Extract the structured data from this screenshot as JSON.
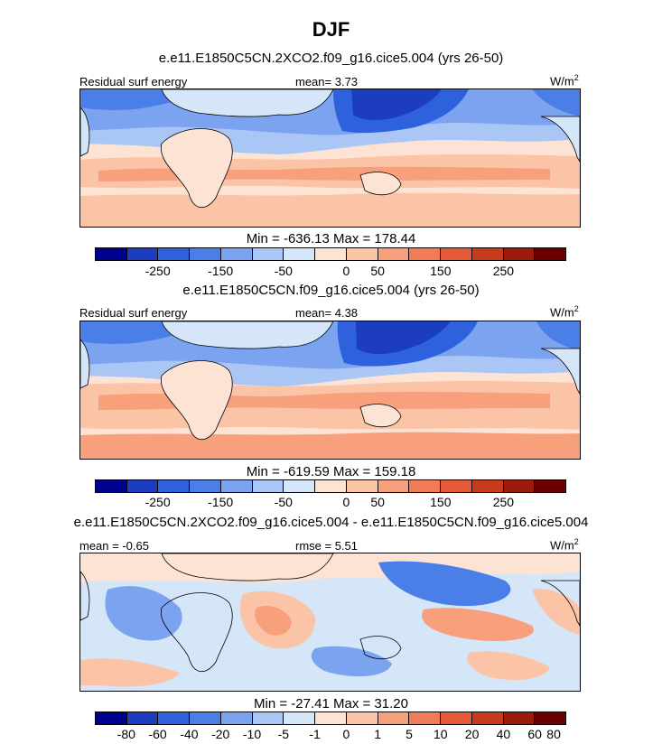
{
  "title": "DJF",
  "panel1": {
    "subtitle": "e.e11.E1850C5CN.2XCO2.f09_g16.cice5.004 (yrs 26-50)",
    "left_label": "Residual surf energy",
    "center_label": "mean=  3.73",
    "units": "W/m",
    "units_exp": "2",
    "minmax": "Min = -636.13 Max = 178.44"
  },
  "panel2": {
    "subtitle": "e.e11.E1850C5CN.f09_g16.cice5.004 (yrs 26-50)",
    "left_label": "Residual surf energy",
    "center_label": "mean=  4.38",
    "units": "W/m",
    "units_exp": "2",
    "minmax": "Min = -619.59 Max = 159.18"
  },
  "panel3": {
    "subtitle": "e.e11.E1850C5CN.2XCO2.f09_g16.cice5.004 - e.e11.E1850C5CN.f09_g16.cice5.004",
    "left_label": "mean =  -0.65",
    "center_label": "rmse =  5.51",
    "units": "W/m",
    "units_exp": "2",
    "minmax": "Min = -27.41 Max =  31.20"
  },
  "colorbar_main": {
    "colors": [
      "#00008f",
      "#1c3dbf",
      "#2e62dd",
      "#4a7fe8",
      "#7ba3f0",
      "#aac6f4",
      "#d4e6f8",
      "#fde3d4",
      "#fbc4a6",
      "#f8a07c",
      "#f27c57",
      "#e45a37",
      "#c73a1c",
      "#9b1a0b",
      "#6b0000"
    ],
    "ticks": [
      "-250",
      "-150",
      "-50",
      "0",
      "50",
      "150",
      "250"
    ]
  },
  "colorbar_diff": {
    "colors": [
      "#00008f",
      "#1c3dbf",
      "#2e62dd",
      "#4a7fe8",
      "#7ba3f0",
      "#aac6f4",
      "#d4e6f8",
      "#fde3d4",
      "#fbc4a6",
      "#f8a07c",
      "#f27c57",
      "#e45a37",
      "#c73a1c",
      "#9b1a0b",
      "#6b0000"
    ],
    "ticks": [
      "-80",
      "-60",
      "-40",
      "-20",
      "-10",
      "-5",
      "-1",
      "0",
      "1",
      "5",
      "10",
      "20",
      "40",
      "60",
      "80"
    ]
  }
}
